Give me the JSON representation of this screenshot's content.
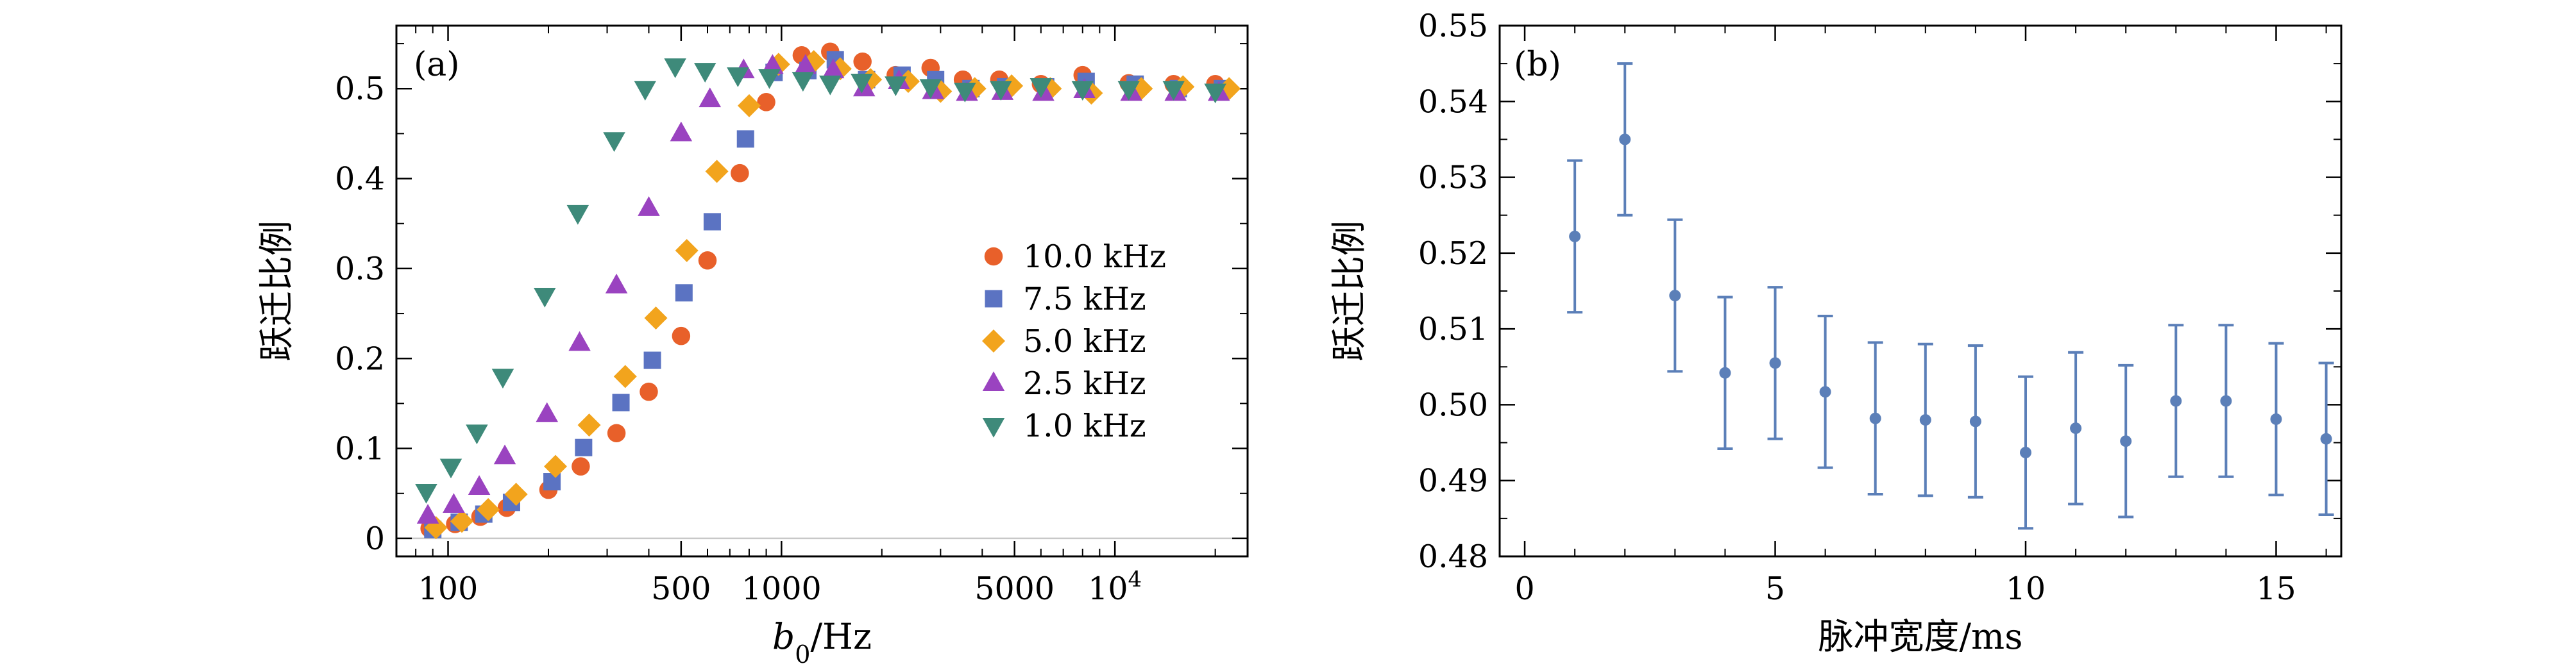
{
  "chart_data": [
    {
      "panel_label": "(a)",
      "type": "scatter",
      "xscale": "log",
      "xlabel": "b0/Hz",
      "xlabel_main": "b",
      "xlabel_sub": "0",
      "xlabel_rest": "/Hz",
      "ylabel": "跃迁比例",
      "xlim": [
        70,
        25000
      ],
      "ylim": [
        -0.02,
        0.57
      ],
      "xticks": [
        {
          "value": 100,
          "label": "100"
        },
        {
          "value": 500,
          "label": "500"
        },
        {
          "value": 1000,
          "label": "1000"
        },
        {
          "value": 5000,
          "label": "5000"
        },
        {
          "value": 10000,
          "label": "10",
          "sup": "4"
        }
      ],
      "yticks": [
        {
          "value": 0,
          "label": "0"
        },
        {
          "value": 0.1,
          "label": "0.1"
        },
        {
          "value": 0.2,
          "label": "0.2"
        },
        {
          "value": 0.3,
          "label": "0.3"
        },
        {
          "value": 0.4,
          "label": "0.4"
        },
        {
          "value": 0.5,
          "label": "0.5"
        }
      ],
      "legend_position": "center-right",
      "series": [
        {
          "name": "10.0 kHz",
          "marker": "circle",
          "color": "#e8602a",
          "x": [
            88,
            105,
            125,
            150,
            200,
            250,
            320,
            400,
            500,
            600,
            750,
            900,
            1150,
            1400,
            1750,
            2200,
            2800,
            3500,
            4500,
            6000,
            8000,
            11000,
            15000,
            20000
          ],
          "y": [
            0.011,
            0.016,
            0.024,
            0.034,
            0.054,
            0.08,
            0.117,
            0.163,
            0.225,
            0.309,
            0.406,
            0.485,
            0.537,
            0.541,
            0.53,
            0.515,
            0.523,
            0.51,
            0.51,
            0.505,
            0.515,
            0.506,
            0.505,
            0.505
          ]
        },
        {
          "name": "7.5 kHz",
          "marker": "square",
          "color": "#5b73c2",
          "x": [
            90,
            108,
            128,
            155,
            205,
            255,
            330,
            410,
            510,
            620,
            780,
            950,
            1200,
            1450,
            1800,
            2300,
            2900,
            3700,
            4700,
            6200,
            8200,
            11500,
            15500,
            21000
          ],
          "y": [
            0.01,
            0.018,
            0.027,
            0.04,
            0.063,
            0.101,
            0.151,
            0.198,
            0.273,
            0.352,
            0.444,
            0.518,
            0.52,
            0.532,
            0.51,
            0.515,
            0.51,
            0.5,
            0.502,
            0.502,
            0.508,
            0.505,
            0.5,
            0.5
          ]
        },
        {
          "name": "5.0 kHz",
          "marker": "diamond",
          "color": "#f2a41d",
          "x": [
            92,
            110,
            132,
            160,
            210,
            265,
            340,
            420,
            520,
            640,
            800,
            980,
            1250,
            1500,
            1850,
            2400,
            3000,
            3800,
            4900,
            6400,
            8500,
            12000,
            16000,
            22000
          ],
          "y": [
            0.012,
            0.019,
            0.032,
            0.049,
            0.08,
            0.126,
            0.18,
            0.245,
            0.32,
            0.408,
            0.481,
            0.527,
            0.53,
            0.522,
            0.51,
            0.508,
            0.497,
            0.5,
            0.503,
            0.5,
            0.495,
            0.5,
            0.502,
            0.5
          ]
        },
        {
          "name": "2.5 kHz",
          "marker": "triangle-up",
          "color": "#9a43c0",
          "x": [
            87,
            104,
            124,
            148,
            198,
            248,
            320,
            400,
            500,
            610,
            770,
            940,
            1180,
            1430,
            1770,
            2250,
            2850,
            3600,
            4600,
            6100,
            8100,
            11200,
            15200,
            20500
          ],
          "y": [
            0.025,
            0.037,
            0.057,
            0.091,
            0.138,
            0.217,
            0.281,
            0.367,
            0.45,
            0.488,
            0.52,
            0.525,
            0.525,
            0.52,
            0.5,
            0.508,
            0.497,
            0.495,
            0.496,
            0.495,
            0.498,
            0.495,
            0.495,
            0.495
          ]
        },
        {
          "name": "1.0 kHz",
          "marker": "triangle-down",
          "color": "#3e8a7a",
          "x": [
            86,
            102,
            122,
            146,
            195,
            245,
            315,
            390,
            480,
            590,
            740,
            920,
            1160,
            1400,
            1740,
            2200,
            2800,
            3550,
            4550,
            6000,
            8000,
            11000,
            15000,
            20000
          ],
          "y": [
            0.052,
            0.08,
            0.118,
            0.18,
            0.27,
            0.362,
            0.443,
            0.5,
            0.525,
            0.52,
            0.515,
            0.513,
            0.51,
            0.506,
            0.508,
            0.505,
            0.502,
            0.498,
            0.5,
            0.503,
            0.5,
            0.5,
            0.5,
            0.497
          ]
        }
      ]
    },
    {
      "panel_label": "(b)",
      "type": "scatter",
      "error_bars": true,
      "xlabel": "脉冲宽度/ms",
      "ylabel": "跃迁比例",
      "xlim": [
        -0.5,
        16.3
      ],
      "ylim": [
        0.48,
        0.55
      ],
      "xticks": [
        {
          "value": 0,
          "label": "0"
        },
        {
          "value": 5,
          "label": "5"
        },
        {
          "value": 10,
          "label": "10"
        },
        {
          "value": 15,
          "label": "15"
        }
      ],
      "yticks": [
        {
          "value": 0.48,
          "label": "0.48"
        },
        {
          "value": 0.49,
          "label": "0.49"
        },
        {
          "value": 0.5,
          "label": "0.50"
        },
        {
          "value": 0.51,
          "label": "0.51"
        },
        {
          "value": 0.52,
          "label": "0.52"
        },
        {
          "value": 0.53,
          "label": "0.53"
        },
        {
          "value": 0.54,
          "label": "0.54"
        },
        {
          "value": 0.55,
          "label": "0.55"
        }
      ],
      "series": [
        {
          "color": "#5b7fb8",
          "x": [
            1,
            2,
            3,
            4,
            5,
            6,
            7,
            8,
            9,
            10,
            11,
            12,
            13,
            14,
            15,
            16
          ],
          "y": [
            0.5222,
            0.535,
            0.5144,
            0.5042,
            0.5055,
            0.5017,
            0.4982,
            0.498,
            0.4978,
            0.4937,
            0.4969,
            0.4952,
            0.5005,
            0.5005,
            0.4981,
            0.4955
          ],
          "err": [
            0.01,
            0.01,
            0.01,
            0.01,
            0.01,
            0.01,
            0.01,
            0.01,
            0.01,
            0.01,
            0.01,
            0.01,
            0.01,
            0.01,
            0.01,
            0.01
          ]
        }
      ]
    }
  ]
}
